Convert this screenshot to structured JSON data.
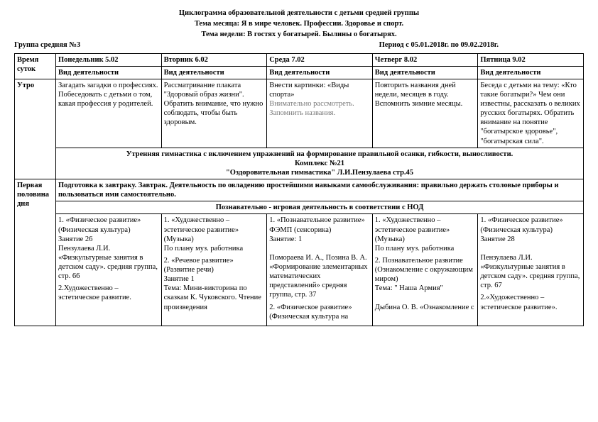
{
  "header": {
    "line1": "Циклограмма образовательной деятельности с детьми средней группы",
    "line2": "Тема месяца: Я в мире человек. Профессии. Здоровье и спорт.",
    "line3": "Тема недели: В гостях у богатырей. Былины о богатырях."
  },
  "subheader": {
    "group": "Группа средняя №3",
    "period": "Период с 05.01.2018г. по 09.02.2018г."
  },
  "cols": {
    "time": "Время суток",
    "mon": "Понедельник 5.02",
    "tue": "Вторник 6.02",
    "wed": "Среда 7.02",
    "thu": "Четверг 8.02",
    "fri": "Пятница 9.02",
    "act": "Вид деятельности"
  },
  "rows": {
    "utro": "Утро",
    "morning": {
      "mon": "Загадать загадки о профессиях. Побеседовать с детьми о том, какая профессия у родителей.",
      "tue": "Рассматривание плаката \"Здоровый образ жизни\". Обратить внимание, что нужно соблюдать, чтобы быть здоровым.",
      "wed_line1": " Внести картинки: «Виды спорта»",
      "wed_line2": "Внимательно рассмотреть. Запомнить названия.",
      "thu": "Повторить названия дней недели, месяцев в году. Вспомнить зимние месяцы.",
      "fri": "Беседа с детьми на тему: «Кто такие богатыри?» Чем они известны, рассказать о великих русских богатырях. Обратить внимание на понятие \"богатырское здоровье\", \"богатырская сила\"."
    },
    "gym": {
      "l1": "Утренняя гимнастика с включением упражнений на формирование правильной осанки, гибкости, выносливости.",
      "l2": "Комплекс №21",
      "l3": "\"Оздоровительная гимнастика\" Л.И.Пензулаева стр.45"
    },
    "half1": {
      "label": "Первая половина дня",
      "text": "Подготовка к завтраку. Завтрак. Деятельность по овладению простейшими навыками самообслуживания: правильно держать столовые приборы и пользоваться ими самостоятельно."
    },
    "nod_title": "Познавательно - игровая деятельность в соответствии с НОД",
    "nod": {
      "mon": {
        "p1": "1. «Физическое развитие» (Физическая культура)\nЗанятие 26\nПензулаева Л.И.\n«Физкультурные занятия в детском саду». средняя группа, стр. 66",
        "p2": "2.Художественно – эстетическое развитие."
      },
      "tue": {
        "p1": "1. «Художественно – эстетическое развитие» (Музыка)\nПо плану муз. работника",
        "p2": "2.  «Речевое развитие» (Развитие речи)\nЗанятие 1\nТема: Мини-викторина по сказкам К. Чуковского. Чтение произведения"
      },
      "wed": {
        "p1": "1. «Познавательное развитие» ФЭМП (сенсорика)\nЗанятие: 1\n\nПомораева И. А., Позина В. А. «Формирование элементарных математических представлений» средняя группа, стр. 37",
        "p2": "2. «Физическое развитие» (Физическая культура на"
      },
      "thu": {
        "p1": "1. «Художественно – эстетическое развитие» (Музыка)\nПо плану муз. работника",
        "p2": "2. Познавательное развитие (Ознакомление с окружающим миром)\nТема: \" Наша Армия\"\n\nДыбина О. В. «Ознакомление с"
      },
      "fri": {
        "p1": "1. «Физическое развитие» (Физическая культура)\nЗанятие 28\n\nПензулаева Л.И.\n«Физкультурные занятия в детском саду».  средняя группа, стр. 67",
        "p2": "2.«Художественно – эстетическое развитие»."
      }
    }
  }
}
